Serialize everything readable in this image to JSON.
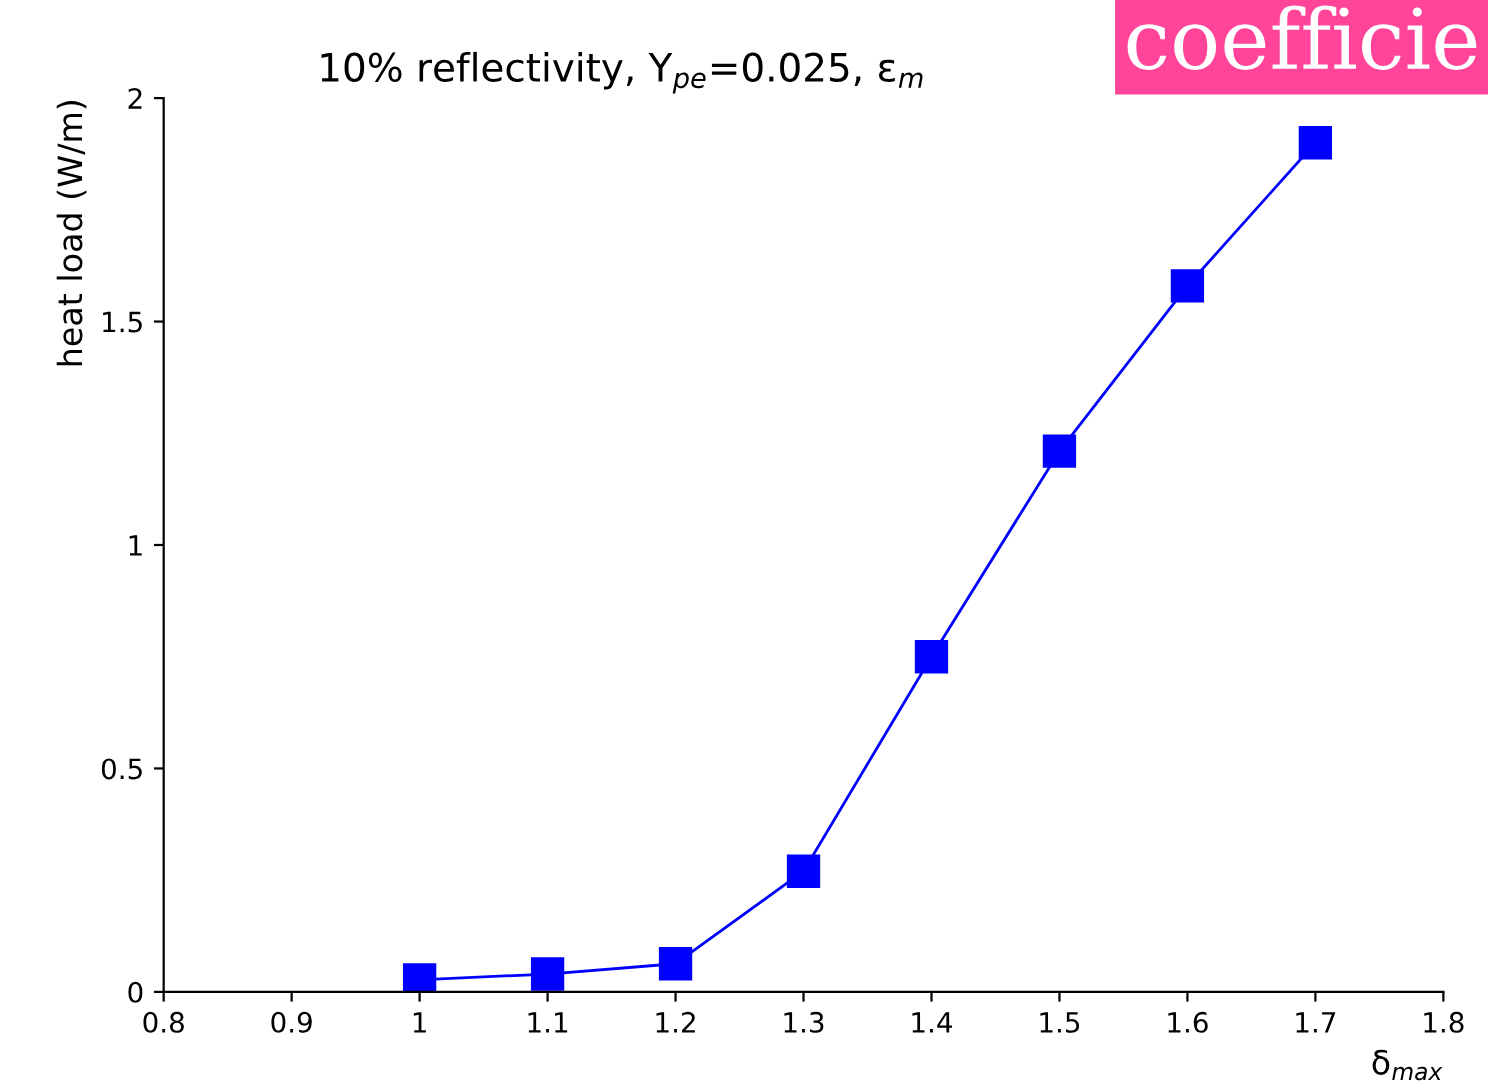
{
  "chart_data": {
    "type": "line",
    "title": "10% reflectivity, Y$_{pe}$=0.025, ε$_{m}$",
    "xlabel": "δ$_{max}$",
    "ylabel": "heat load (W/m)",
    "x": [
      1.0,
      1.1,
      1.2,
      1.3,
      1.4,
      1.5,
      1.6,
      1.7
    ],
    "series": [
      {
        "color": "#0000ff",
        "values": [
          0.027,
          0.04,
          0.063,
          0.27,
          0.75,
          1.21,
          1.58,
          1.9
        ]
      }
    ],
    "xlim": [
      0.8,
      1.8
    ],
    "xticks": [
      0.8,
      0.9,
      1,
      1.1,
      1.2,
      1.3,
      1.4,
      1.5,
      1.6,
      1.7,
      1.8
    ],
    "ylim": [
      0,
      2
    ],
    "yticks": [
      0,
      0.5,
      1,
      1.5,
      2
    ],
    "marker": "square",
    "line_style": "solid",
    "grid": false,
    "legend": false,
    "annotations": [
      "coefficie"
    ]
  }
}
